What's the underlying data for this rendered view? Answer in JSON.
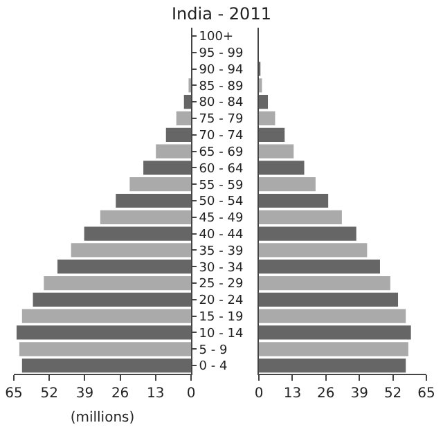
{
  "chart_data": [
    {
      "type": "bar",
      "orientation": "horizontal",
      "title": "India - 2011",
      "xlabel": "(millions)",
      "categories": [
        "100+",
        "95 - 99",
        "90 - 94",
        "85 - 89",
        "80 - 84",
        "75 - 79",
        "70 - 74",
        "65 - 69",
        "60 - 64",
        "55 - 59",
        "50 - 54",
        "45 - 49",
        "40 - 44",
        "35 - 39",
        "30 - 34",
        "25 - 29",
        "20 - 24",
        "15 - 19",
        "10 - 14",
        "5 - 9",
        "0 - 4"
      ],
      "values": [
        null,
        null,
        null,
        0.9,
        2.6,
        5.4,
        9.2,
        12.9,
        17.5,
        22.5,
        27.6,
        33.3,
        39.2,
        44,
        49,
        54,
        58,
        62,
        64,
        63,
        62
      ],
      "colors": [
        "#666666",
        "#aaaaaa",
        "#666666",
        "#aaaaaa",
        "#666666",
        "#aaaaaa",
        "#666666",
        "#aaaaaa",
        "#666666",
        "#aaaaaa",
        "#666666",
        "#aaaaaa",
        "#666666",
        "#aaaaaa",
        "#666666",
        "#aaaaaa",
        "#666666",
        "#aaaaaa",
        "#666666",
        "#aaaaaa",
        "#666666"
      ],
      "xlim": [
        65,
        0
      ],
      "xticks": [
        0,
        13,
        26,
        39,
        52,
        65
      ]
    },
    {
      "type": "bar",
      "orientation": "horizontal",
      "categories": [
        null,
        null,
        null,
        null,
        null,
        null,
        null,
        null,
        null,
        null,
        null,
        null,
        null,
        null,
        null,
        null,
        null,
        null,
        null,
        null,
        null
      ],
      "values": [
        null,
        null,
        0.6,
        1.2,
        3.5,
        6.3,
        10,
        13.5,
        17.6,
        22,
        26.9,
        32.2,
        37.8,
        42,
        47,
        51,
        54,
        57,
        59,
        58,
        57
      ],
      "colors": [
        "#666666",
        "#aaaaaa",
        "#666666",
        "#aaaaaa",
        "#666666",
        "#aaaaaa",
        "#666666",
        "#aaaaaa",
        "#666666",
        "#aaaaaa",
        "#666666",
        "#aaaaaa",
        "#666666",
        "#aaaaaa",
        "#666666",
        "#aaaaaa",
        "#666666",
        "#aaaaaa",
        "#666666",
        "#aaaaaa",
        "#666666"
      ],
      "xlim": [
        0,
        65
      ],
      "xticks": [
        0,
        13,
        26,
        39,
        52,
        65
      ]
    }
  ]
}
